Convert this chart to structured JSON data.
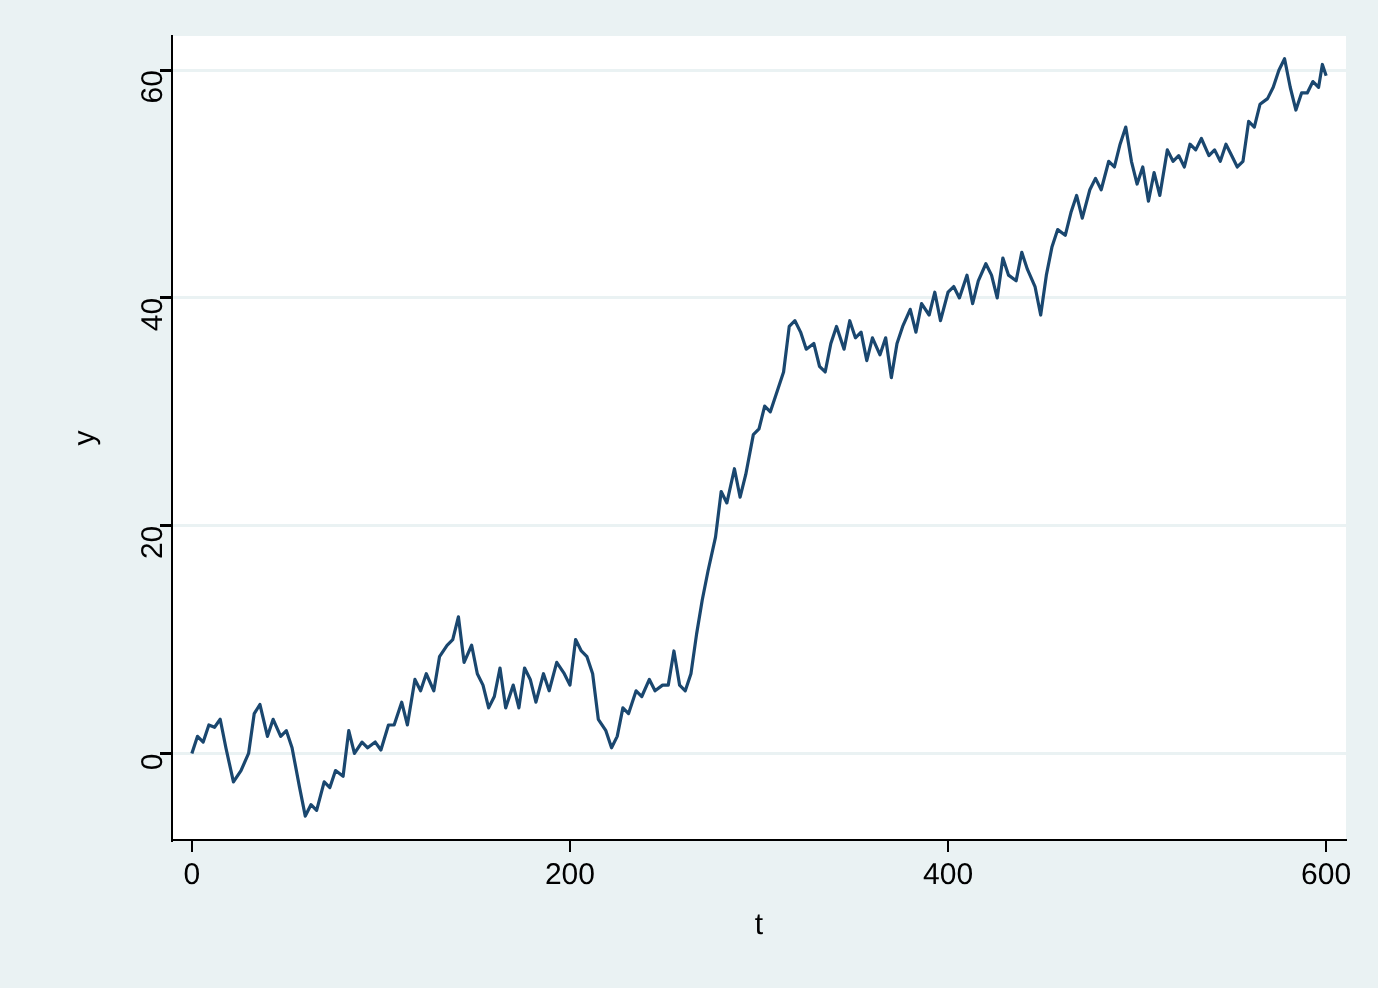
{
  "chart_data": {
    "type": "line",
    "xlabel": "t",
    "ylabel": "y",
    "color": "#1a476f",
    "grid": "y",
    "marker": "none",
    "line_style": "solid",
    "xlim": [
      -10.5,
      610.5
    ],
    "ylim": [
      -7.6,
      63
    ],
    "xticks": [
      0,
      200,
      400,
      600
    ],
    "yticks": [
      0,
      20,
      40,
      60
    ],
    "x": [
      0,
      3,
      6,
      9,
      12,
      15,
      18,
      22,
      26,
      30,
      33,
      36,
      40,
      43,
      47,
      50,
      53,
      57,
      60,
      63,
      66,
      70,
      73,
      76,
      80,
      83,
      86,
      90,
      93,
      97,
      100,
      104,
      107,
      111,
      114,
      118,
      121,
      124,
      128,
      131,
      135,
      138,
      141,
      144,
      148,
      151,
      154,
      157,
      160,
      163,
      166,
      170,
      173,
      176,
      179,
      182,
      186,
      189,
      193,
      197,
      200,
      203,
      206,
      209,
      212,
      215,
      219,
      222,
      225,
      228,
      231,
      235,
      238,
      242,
      245,
      249,
      252,
      255,
      258,
      261,
      264,
      267,
      270,
      273,
      277,
      280,
      283,
      287,
      290,
      293,
      297,
      300,
      303,
      306,
      309,
      313,
      316,
      319,
      322,
      325,
      329,
      332,
      335,
      338,
      341,
      345,
      348,
      351,
      354,
      357,
      360,
      364,
      367,
      370,
      373,
      376,
      380,
      383,
      386,
      390,
      393,
      396,
      400,
      403,
      406,
      410,
      413,
      416,
      420,
      423,
      426,
      429,
      432,
      436,
      439,
      442,
      446,
      449,
      452,
      455,
      458,
      462,
      465,
      468,
      471,
      475,
      478,
      481,
      485,
      488,
      491,
      494,
      497,
      500,
      503,
      506,
      509,
      512,
      516,
      519,
      522,
      525,
      528,
      531,
      534,
      538,
      541,
      544,
      547,
      550,
      553,
      556,
      559,
      562,
      565,
      569,
      572,
      575,
      578,
      581,
      584,
      587,
      590,
      593,
      596,
      598,
      600
    ],
    "values": [
      0,
      1.5,
      1,
      2.5,
      2.3,
      3,
      0.5,
      -2.5,
      -1.5,
      0,
      3.5,
      4.3,
      1.5,
      3,
      1.5,
      2,
      0.5,
      -3,
      -5.5,
      -4.5,
      -5,
      -2.5,
      -3,
      -1.5,
      -2,
      2,
      0,
      1,
      0.5,
      1,
      0.3,
      2.5,
      2.5,
      4.5,
      2.5,
      6.5,
      5.5,
      7,
      5.5,
      8.5,
      9.5,
      10,
      12,
      8,
      9.5,
      7,
      6,
      4,
      5,
      7.5,
      4,
      6,
      4,
      7.5,
      6.5,
      4.5,
      7,
      5.5,
      8,
      7,
      6,
      10,
      9,
      8.5,
      7,
      3,
      2,
      0.5,
      1.5,
      4,
      3.5,
      5.5,
      5,
      6.5,
      5.5,
      6,
      6,
      9,
      6,
      5.5,
      7,
      10.5,
      13.5,
      16,
      19,
      23,
      22,
      25,
      22.5,
      24.5,
      28,
      28.5,
      30.5,
      30,
      31.5,
      33.5,
      37.5,
      38,
      37,
      35.5,
      36,
      34,
      33.5,
      36,
      37.5,
      35.5,
      38,
      36.5,
      37,
      34.5,
      36.5,
      35,
      36.5,
      33,
      36,
      37.5,
      39,
      37,
      39.5,
      38.5,
      40.5,
      38,
      40.5,
      41,
      40,
      42,
      39.5,
      41.5,
      43,
      42,
      40,
      43.5,
      42,
      41.5,
      44,
      42.5,
      41,
      38.5,
      42,
      44.5,
      46,
      45.5,
      47.5,
      49,
      47,
      49.5,
      50.5,
      49.5,
      52,
      51.5,
      53.5,
      55,
      52,
      50,
      51.5,
      48.5,
      51,
      49,
      53,
      52,
      52.5,
      51.5,
      53.5,
      53,
      54,
      52.5,
      53,
      52,
      53.5,
      52.5,
      51.5,
      52,
      55.5,
      55,
      57,
      57.5,
      58.5,
      60,
      61,
      58.5,
      56.5,
      58,
      58,
      59,
      58.5,
      60.5,
      59.5
    ]
  }
}
